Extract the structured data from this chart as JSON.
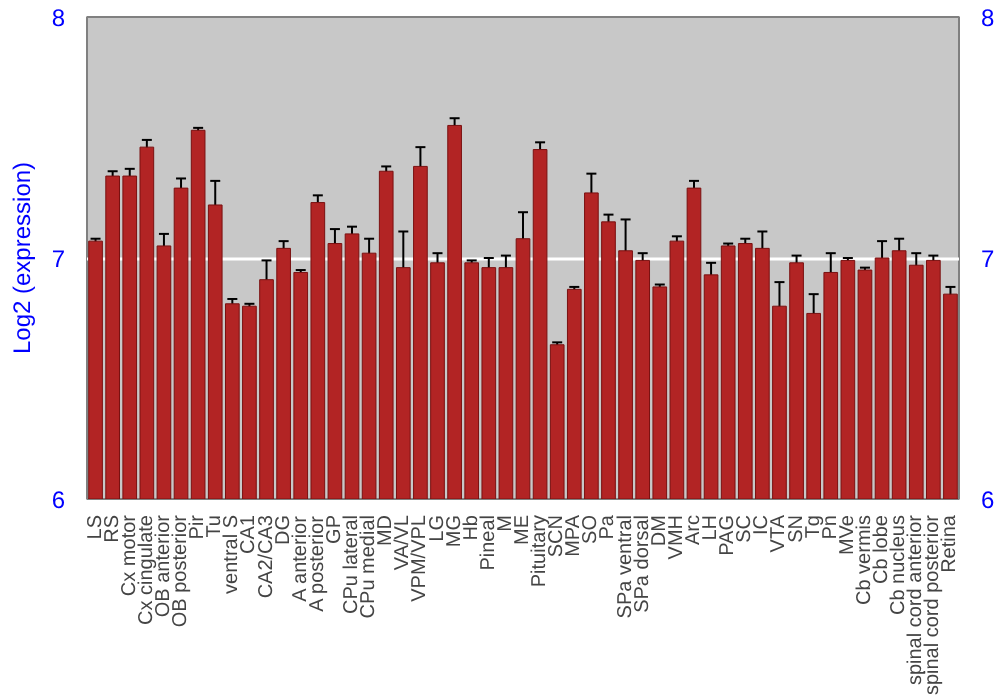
{
  "chart_data": {
    "type": "bar",
    "ylabel": "Log2 (expression)",
    "categories": [
      "LS",
      "RS",
      "Cx motor",
      "Cx cingulate",
      "OB anterior",
      "OB posterior",
      "Pir",
      "Tu",
      "ventral S",
      "CA1",
      "CA2/CA3",
      "DG",
      "A anterior",
      "A posterior",
      "GP",
      "CPu lateral",
      "CPu medial",
      "MD",
      "VA/VL",
      "VPM/VPL",
      "LG",
      "MG",
      "Hb",
      "Pineal",
      "M",
      "ME",
      "Pituitary",
      "SCN",
      "MPA",
      "SO",
      "Pa",
      "SPa ventral",
      "SPa dorsal",
      "DM",
      "VMH",
      "Arc",
      "LH",
      "PAG",
      "SC",
      "IC",
      "VTA",
      "SN",
      "Tg",
      "Pn",
      "MVe",
      "Cb vermis",
      "Cb lobe",
      "Cb nucleus",
      "spinal cord anterior",
      "spinal cord posterior",
      "Retina"
    ],
    "values": [
      7.07,
      7.34,
      7.34,
      7.46,
      7.05,
      7.29,
      7.53,
      7.22,
      6.81,
      6.8,
      6.91,
      7.04,
      6.94,
      7.23,
      7.06,
      7.1,
      7.02,
      7.36,
      6.96,
      7.38,
      6.98,
      7.55,
      6.98,
      6.96,
      6.96,
      7.08,
      7.45,
      6.64,
      6.87,
      7.27,
      7.15,
      7.03,
      6.99,
      6.88,
      7.07,
      7.29,
      6.93,
      7.05,
      7.06,
      7.04,
      6.8,
      6.98,
      6.77,
      6.94,
      6.99,
      6.95,
      7.0,
      7.03,
      6.97,
      6.99,
      6.85
    ],
    "errors": [
      0.01,
      0.02,
      0.03,
      0.03,
      0.05,
      0.04,
      0.01,
      0.1,
      0.02,
      0.01,
      0.08,
      0.03,
      0.01,
      0.03,
      0.06,
      0.03,
      0.06,
      0.02,
      0.15,
      0.08,
      0.04,
      0.03,
      0.01,
      0.04,
      0.05,
      0.11,
      0.03,
      0.01,
      0.01,
      0.08,
      0.03,
      0.13,
      0.03,
      0.01,
      0.02,
      0.03,
      0.05,
      0.01,
      0.02,
      0.07,
      0.1,
      0.03,
      0.08,
      0.08,
      0.01,
      0.01,
      0.07,
      0.05,
      0.05,
      0.02,
      0.03
    ],
    "color": "#b22424",
    "ylim": [
      6,
      8
    ],
    "yticks": [
      6,
      7,
      8
    ],
    "y2lim": [
      6,
      8
    ],
    "y2ticks": [
      6,
      7,
      8
    ],
    "grid": "y"
  }
}
